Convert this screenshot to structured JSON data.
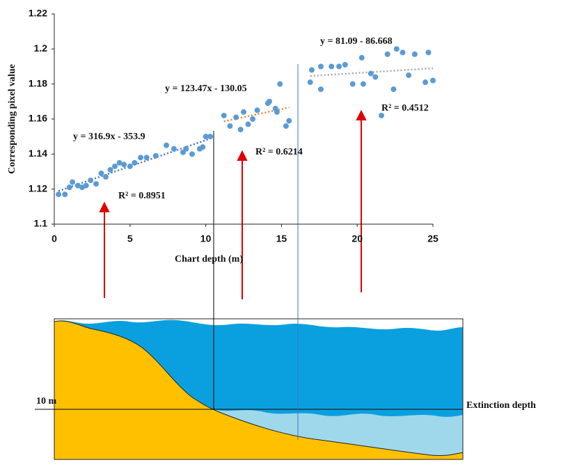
{
  "chart_data": {
    "type": "scatter",
    "x_label": "Chart depth (m)",
    "y_label": "Corresponding  pixel value",
    "xlim": [
      0,
      25
    ],
    "xticks": [
      0,
      5,
      10,
      15,
      20,
      25
    ],
    "ylim": [
      1.1,
      1.22
    ],
    "yticks": [
      1.1,
      1.12,
      1.14,
      1.16,
      1.18,
      1.2,
      1.22
    ],
    "grid": false,
    "trendline": "linear",
    "series": [
      {
        "color": "#5b9bd5",
        "trendline_color": "#4472c4",
        "x": [
          0.28,
          0.7,
          1.0,
          1.2,
          1.56,
          1.84,
          2.1,
          2.4,
          2.76,
          3.1,
          3.4,
          3.7,
          4.0,
          4.3,
          4.6,
          5.0,
          5.3,
          5.7,
          6.1,
          6.7,
          7.4,
          7.9,
          8.5,
          8.7,
          9.1,
          9.6,
          9.8,
          10.0,
          10.3
        ],
        "values": [
          1.117,
          1.117,
          1.121,
          1.124,
          1.122,
          1.121,
          1.122,
          1.125,
          1.123,
          1.129,
          1.127,
          1.131,
          1.133,
          1.135,
          1.134,
          1.133,
          1.135,
          1.138,
          1.138,
          1.139,
          1.145,
          1.143,
          1.141,
          1.143,
          1.14,
          1.143,
          1.144,
          1.15,
          1.15
        ]
      },
      {
        "color": "#5b9bd5",
        "trendline_color": "#ed7d31",
        "x": [
          11.2,
          11.6,
          12.0,
          12.3,
          12.5,
          12.8,
          13.1,
          13.4,
          14.1,
          14.2,
          14.6,
          14.7,
          14.9,
          15.3,
          15.5
        ],
        "values": [
          1.162,
          1.156,
          1.161,
          1.154,
          1.164,
          1.157,
          1.16,
          1.165,
          1.169,
          1.17,
          1.166,
          1.164,
          1.18,
          1.156,
          1.159
        ]
      },
      {
        "color": "#5b9bd5",
        "trendline_color": "#a5a5a5",
        "x": [
          16.9,
          17.0,
          17.6,
          17.6,
          18.3,
          18.8,
          19.2,
          19.7,
          20.3,
          20.4,
          20.9,
          21.2,
          21.6,
          22.0,
          22.4,
          22.6,
          23.0,
          23.4,
          23.8,
          24.5,
          24.7,
          25.0
        ],
        "values": [
          1.181,
          1.188,
          1.177,
          1.19,
          1.19,
          1.19,
          1.191,
          1.18,
          1.195,
          1.18,
          1.186,
          1.184,
          1.162,
          1.197,
          1.177,
          1.2,
          1.198,
          1.185,
          1.197,
          1.181,
          1.198,
          1.182
        ]
      }
    ],
    "annotations": [
      "y = 316.9x - 353.9",
      "R² = 0.8951",
      "y = 123.47x - 130.05",
      "R² = 0.6214",
      "y = 81.09 - 86.668",
      "R² = 0.4512"
    ]
  },
  "diagram": {
    "depth_label": "10 m",
    "extinction_label": "Extinction depth"
  }
}
